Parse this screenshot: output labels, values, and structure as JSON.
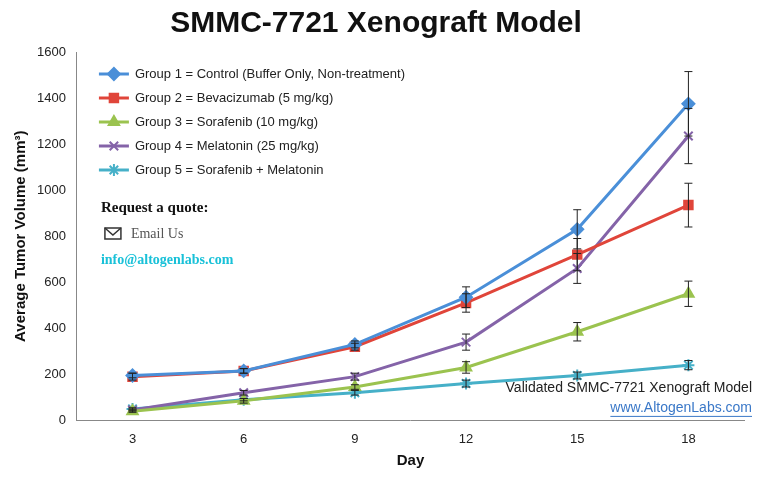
{
  "chart_data": {
    "type": "line",
    "title": "SMMC-7721 Xenograft Model",
    "x_label": "Day",
    "y_label": "Average Tumor Volume (mm³)",
    "categories": [
      "3",
      "6",
      "9",
      "12",
      "15",
      "18"
    ],
    "series": [
      {
        "name": "Group 1 = Control (Buffer Only, Non-treatment)",
        "color": "#4a8fd8",
        "marker": "diamond",
        "values": [
          195,
          215,
          330,
          535,
          830,
          1375
        ],
        "errors": [
          10,
          10,
          15,
          45,
          85,
          140
        ]
      },
      {
        "name": "Group 2 = Bevacizumab (5 mg/kg)",
        "color": "#e0453a",
        "marker": "square",
        "values": [
          190,
          215,
          320,
          510,
          720,
          935
        ],
        "errors": [
          15,
          10,
          15,
          40,
          70,
          95
        ]
      },
      {
        "name": "Group 3 = Sorafenib (10 mg/kg)",
        "color": "#9bc34f",
        "marker": "triangle",
        "values": [
          40,
          85,
          145,
          230,
          385,
          550
        ],
        "errors": [
          5,
          10,
          10,
          25,
          40,
          55
        ]
      },
      {
        "name": "Group 4 = Melatonin (25 mg/kg)",
        "color": "#8463a8",
        "marker": "x",
        "values": [
          45,
          120,
          190,
          340,
          660,
          1235
        ],
        "errors": [
          5,
          10,
          15,
          35,
          65,
          120
        ]
      },
      {
        "name": "Group 5 = Sorafenib + Melatonin",
        "color": "#46b0c8",
        "marker": "star",
        "values": [
          50,
          90,
          120,
          160,
          195,
          240
        ],
        "errors": [
          5,
          5,
          10,
          15,
          15,
          20
        ]
      }
    ],
    "ylim": [
      0,
      1600
    ],
    "yticks": [
      0,
      200,
      400,
      600,
      800,
      1000,
      1200,
      1400,
      1600
    ],
    "grid": false,
    "legend": "upper left",
    "annotations": [
      "Request a quote:",
      "Email Us",
      "info@altogenlabs.com",
      "Validated SMMC-7721 Xenograft Model",
      "www.AltogenLabs.com"
    ]
  }
}
